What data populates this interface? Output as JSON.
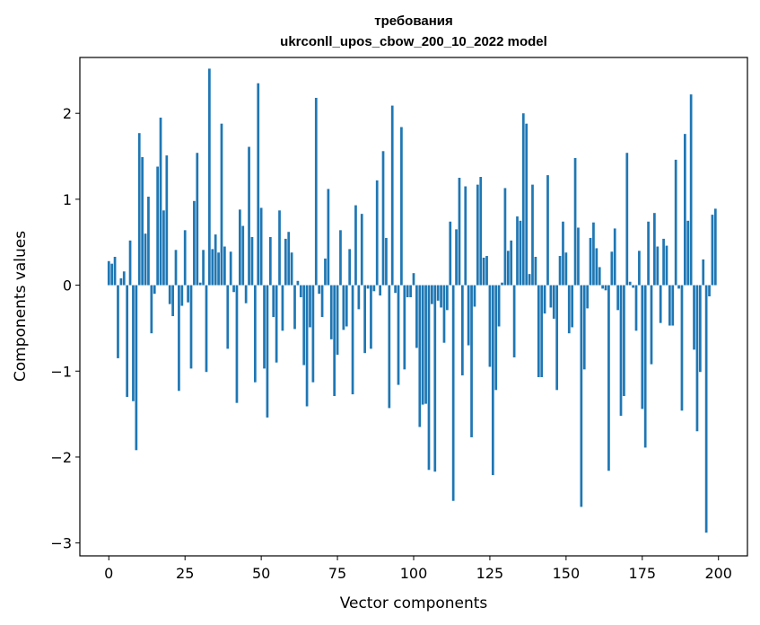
{
  "chart_data": {
    "type": "bar",
    "title": "требования",
    "subtitle": "ukrconll_upos_cbow_200_10_2022 model",
    "xlabel": "Vector components",
    "ylabel": "Components values",
    "xlim": [
      -9.5,
      209.5
    ],
    "ylim": [
      -3.15,
      2.65
    ],
    "xticks": [
      0,
      25,
      50,
      75,
      100,
      125,
      150,
      175,
      200
    ],
    "yticks": [
      -3,
      -2,
      -1,
      0,
      1,
      2
    ],
    "ytick_labels": [
      "−3",
      "−2",
      "−1",
      "0",
      "1",
      "2"
    ],
    "bar_color": "#1f77b4",
    "values": [
      0.28,
      0.25,
      0.33,
      -0.85,
      0.08,
      0.16,
      -1.3,
      0.52,
      -1.35,
      -1.92,
      1.77,
      1.49,
      0.6,
      1.03,
      -0.56,
      -0.1,
      1.38,
      1.95,
      0.87,
      1.51,
      -0.22,
      -0.36,
      0.41,
      -1.23,
      -0.24,
      0.64,
      -0.2,
      -0.97,
      0.98,
      1.54,
      0.03,
      0.41,
      -1.01,
      2.52,
      0.42,
      0.59,
      0.38,
      1.88,
      0.45,
      -0.74,
      0.39,
      -0.08,
      -1.37,
      0.88,
      0.69,
      -0.21,
      1.61,
      0.56,
      -1.13,
      2.35,
      0.9,
      -0.97,
      -1.54,
      0.56,
      -0.37,
      -0.9,
      0.87,
      -0.53,
      0.54,
      0.62,
      0.38,
      -0.51,
      0.05,
      -0.14,
      -0.93,
      -1.41,
      -0.49,
      -1.13,
      2.18,
      -0.1,
      -0.37,
      0.31,
      1.12,
      -0.63,
      -1.29,
      -0.81,
      0.64,
      -0.52,
      -0.48,
      0.42,
      -1.27,
      0.93,
      -0.28,
      0.83,
      -0.79,
      -0.04,
      -0.74,
      -0.07,
      1.22,
      -0.12,
      1.56,
      0.55,
      -1.43,
      2.09,
      -0.09,
      -1.16,
      1.84,
      -0.98,
      -0.14,
      -0.14,
      0.14,
      -0.73,
      -1.65,
      -1.39,
      -1.38,
      -2.15,
      -0.22,
      -2.17,
      -0.18,
      -0.26,
      -0.67,
      -0.29,
      0.74,
      -2.51,
      0.65,
      1.25,
      -1.05,
      1.15,
      -0.7,
      -1.77,
      -0.25,
      1.17,
      1.26,
      0.32,
      0.34,
      -0.95,
      -2.21,
      -1.22,
      -0.48,
      0.03,
      1.13,
      0.4,
      0.52,
      -0.84,
      0.8,
      0.75,
      2.0,
      1.88,
      0.13,
      1.17,
      0.33,
      -1.07,
      -1.07,
      -0.33,
      1.28,
      -0.26,
      -0.39,
      -1.22,
      0.34,
      0.74,
      0.38,
      -0.56,
      -0.49,
      1.48,
      0.67,
      -2.58,
      -0.98,
      -0.27,
      0.55,
      0.73,
      0.43,
      0.21,
      -0.04,
      -0.06,
      -2.16,
      0.39,
      0.66,
      -0.29,
      -1.52,
      -1.29,
      1.54,
      0.04,
      -0.03,
      -0.53,
      0.4,
      -1.44,
      -1.89,
      0.74,
      -0.92,
      0.84,
      0.45,
      -0.44,
      0.54,
      0.46,
      -0.47,
      -0.47,
      1.46,
      -0.04,
      -1.46,
      1.76,
      0.75,
      2.22,
      -0.75,
      -1.7,
      -1.01,
      0.3,
      -2.88,
      -0.13,
      0.82,
      0.89
    ]
  }
}
